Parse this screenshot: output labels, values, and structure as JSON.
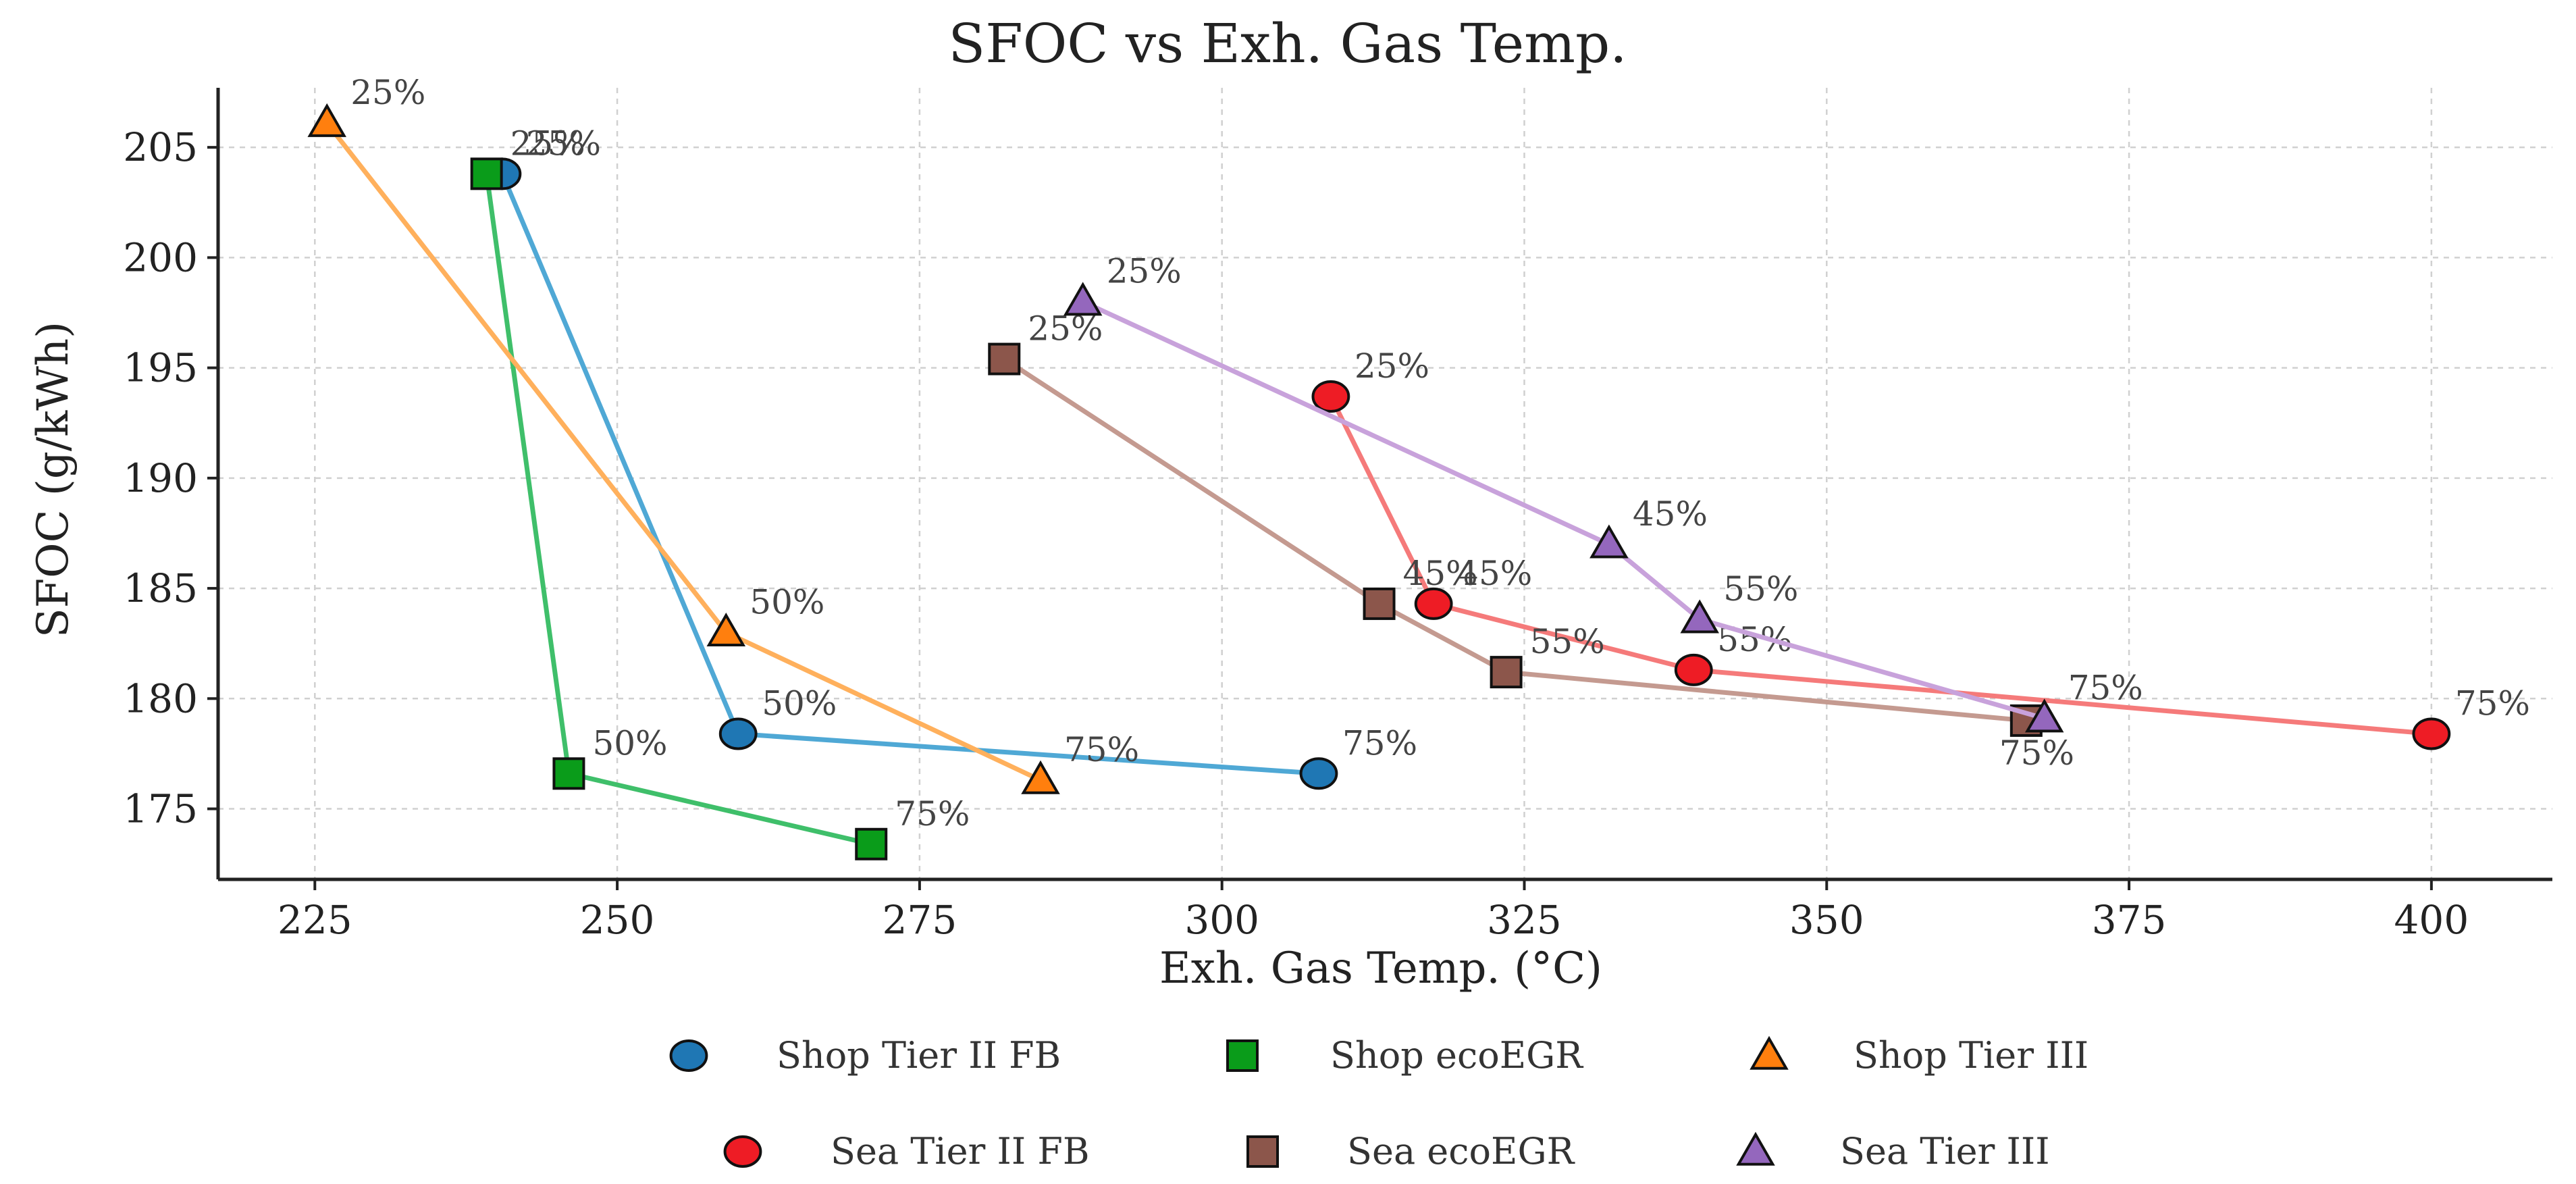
{
  "chart_data": {
    "type": "line",
    "title": "SFOC vs Exh. Gas Temp.",
    "xlabel": "Exh. Gas Temp. (°C)",
    "ylabel": "SFOC (g/kWh)",
    "xlim": [
      217,
      410
    ],
    "ylim": [
      171.8,
      207.7
    ],
    "xticks": [
      225,
      250,
      275,
      300,
      325,
      350,
      375,
      400
    ],
    "yticks": [
      175,
      180,
      185,
      190,
      195,
      200,
      205
    ],
    "grid": true,
    "legend_position": "bottom",
    "series": [
      {
        "name": "Shop Tier II FB",
        "marker": "circle",
        "marker_color": "#1f77b4",
        "line_color": "#4fa8d5",
        "points": [
          {
            "x": 240.5,
            "y": 203.8,
            "label": "25%"
          },
          {
            "x": 260,
            "y": 178.4,
            "label": "50%"
          },
          {
            "x": 308,
            "y": 176.6,
            "label": "75%"
          }
        ]
      },
      {
        "name": "Shop ecoEGR",
        "marker": "square",
        "marker_color": "#0a9c1a",
        "line_color": "#3fbf6a",
        "points": [
          {
            "x": 239.2,
            "y": 203.8,
            "label": "25%"
          },
          {
            "x": 246,
            "y": 176.6,
            "label": "50%"
          },
          {
            "x": 271,
            "y": 173.4,
            "label": "75%"
          }
        ]
      },
      {
        "name": "Shop Tier III",
        "marker": "triangle",
        "marker_color": "#ff7f0e",
        "line_color": "#ffb05c",
        "points": [
          {
            "x": 226,
            "y": 206.1,
            "label": "25%"
          },
          {
            "x": 259,
            "y": 183,
            "label": "50%"
          },
          {
            "x": 285,
            "y": 176.3,
            "label": "75%"
          }
        ]
      },
      {
        "name": "Sea Tier II FB",
        "marker": "circle",
        "marker_color": "#ee1c25",
        "line_color": "#f57a7a",
        "points": [
          {
            "x": 309,
            "y": 193.7,
            "label": "25%"
          },
          {
            "x": 317.5,
            "y": 184.3,
            "label": "45%"
          },
          {
            "x": 339,
            "y": 181.3,
            "label": "55%"
          },
          {
            "x": 400,
            "y": 178.4,
            "label": "75%"
          }
        ]
      },
      {
        "name": "Sea ecoEGR",
        "marker": "square",
        "marker_color": "#8c564b",
        "line_color": "#c49a90",
        "points": [
          {
            "x": 282,
            "y": 195.4,
            "label": "25%"
          },
          {
            "x": 313,
            "y": 184.3,
            "label": "45%"
          },
          {
            "x": 323.5,
            "y": 181.2,
            "label": "55%"
          },
          {
            "x": 366.5,
            "y": 179,
            "label": "75%"
          }
        ]
      },
      {
        "name": "Sea Tier III",
        "marker": "triangle",
        "marker_color": "#9467bd",
        "line_color": "#c8a2db",
        "points": [
          {
            "x": 288.5,
            "y": 198,
            "label": "25%"
          },
          {
            "x": 332,
            "y": 187,
            "label": "45%"
          },
          {
            "x": 339.5,
            "y": 183.6,
            "label": "55%"
          },
          {
            "x": 368,
            "y": 179.1,
            "label": "75%"
          }
        ]
      }
    ]
  }
}
